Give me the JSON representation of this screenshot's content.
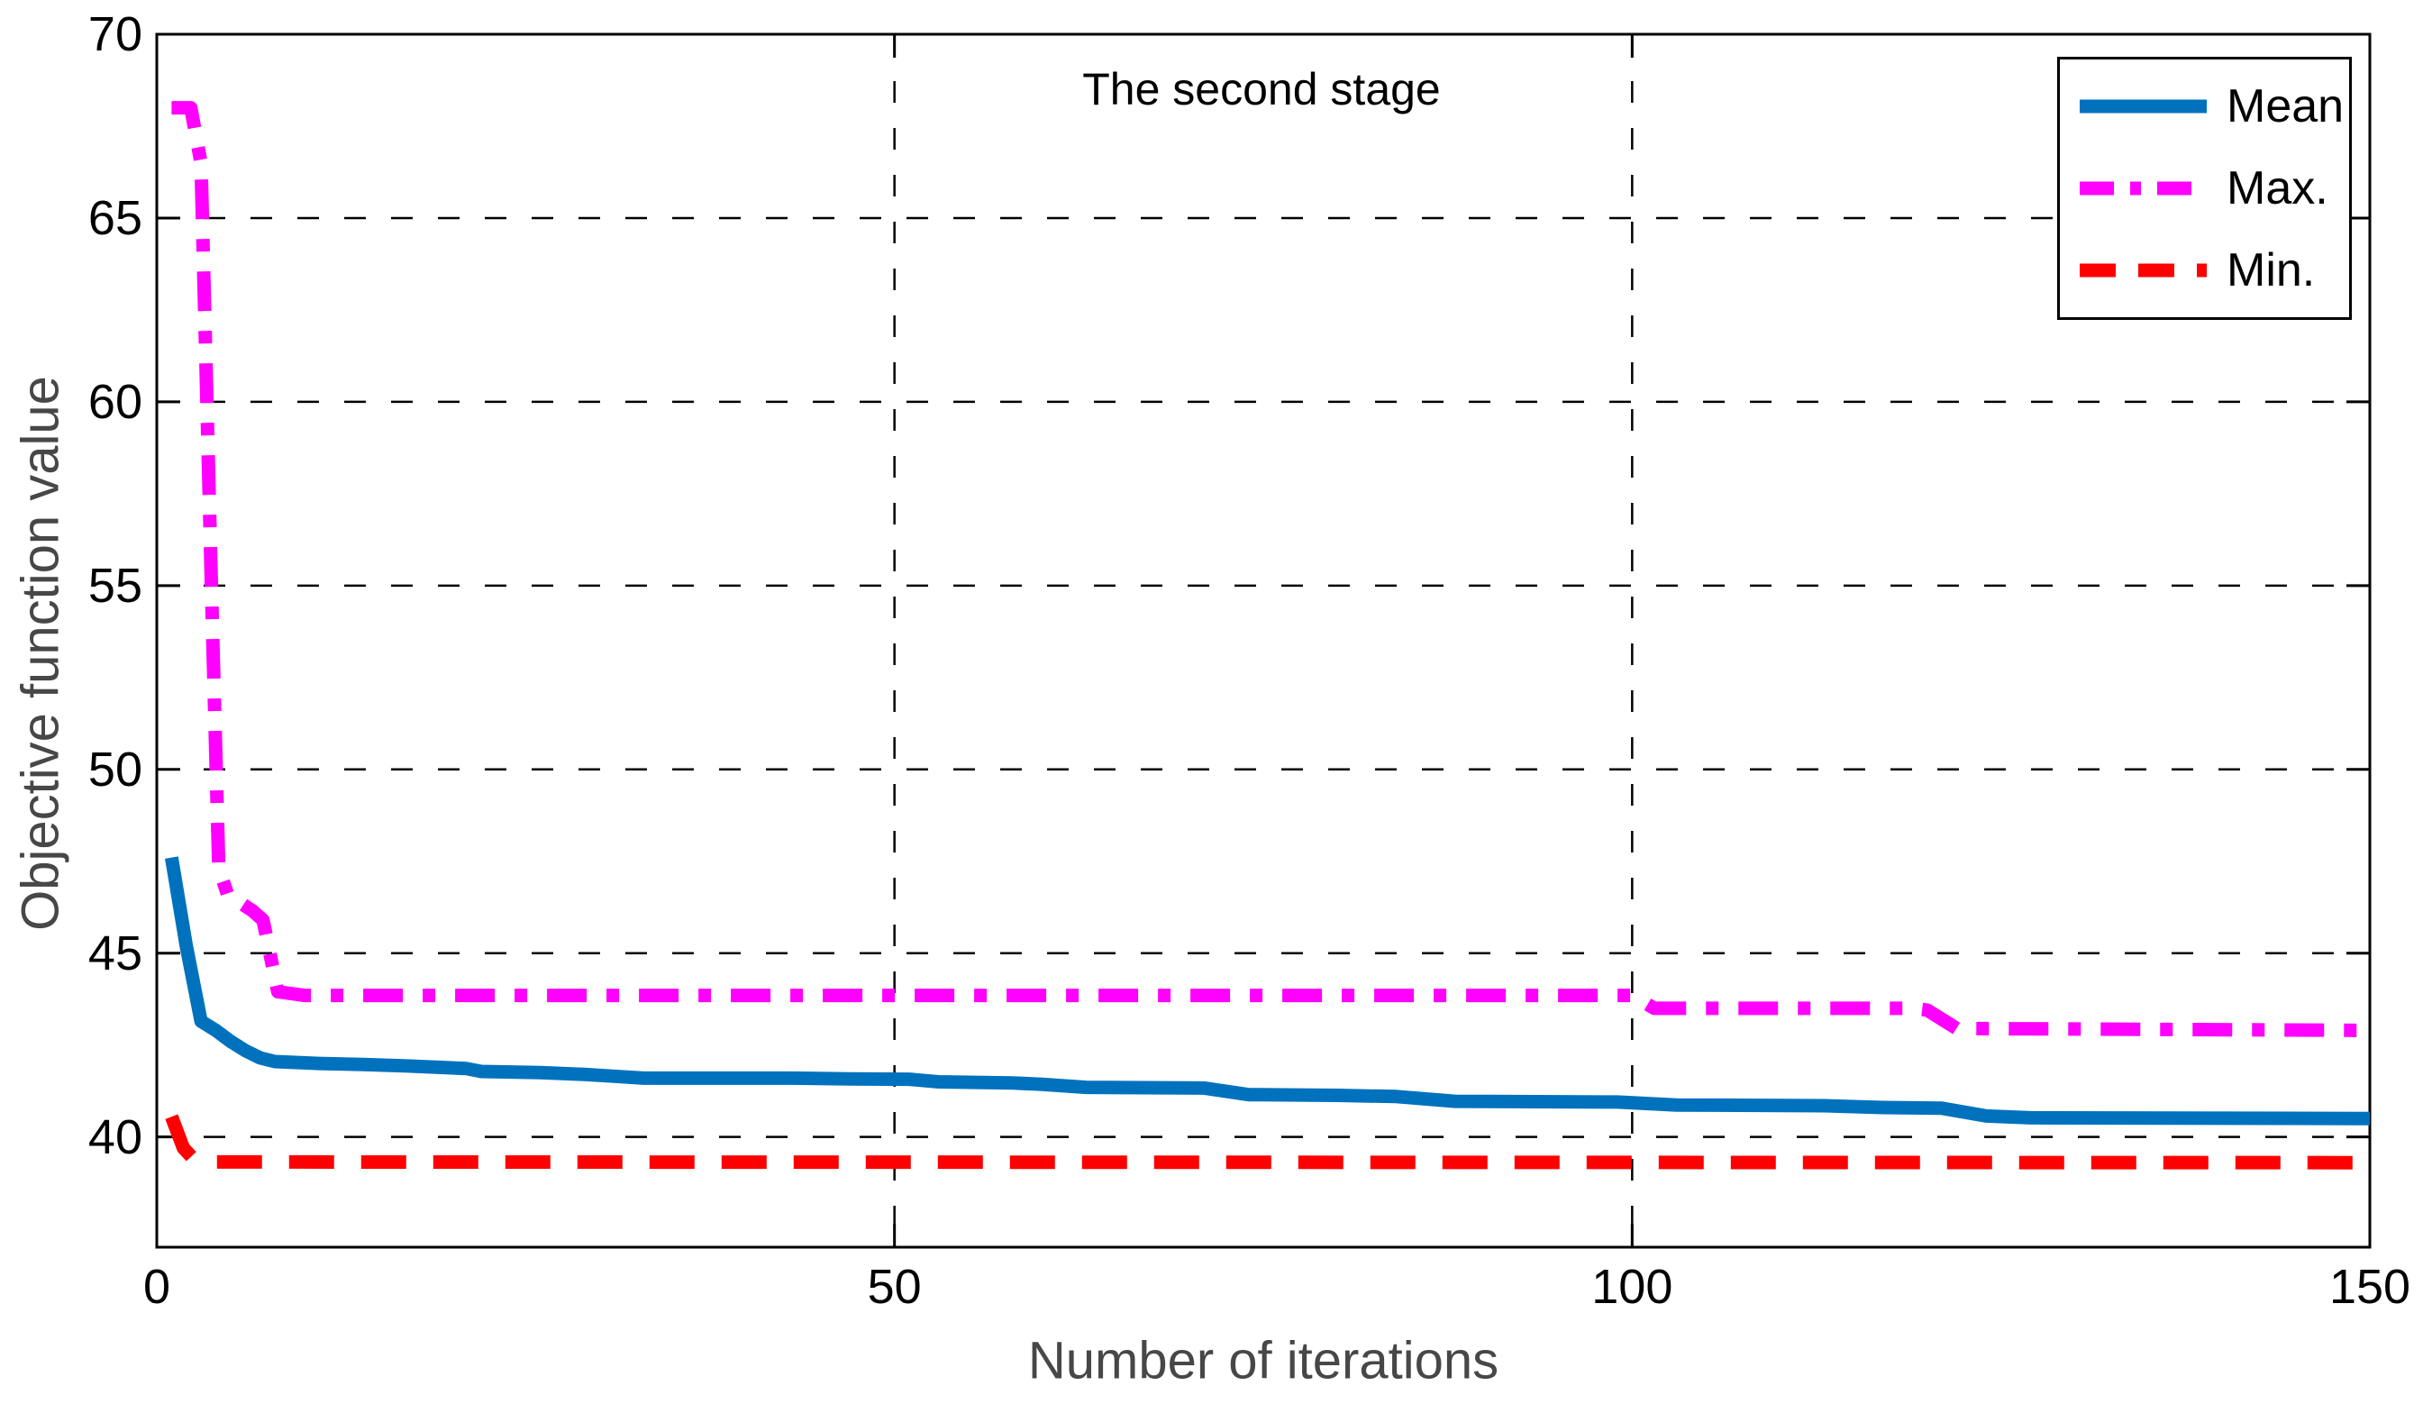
{
  "figure": {
    "background": "#FFFFFF"
  },
  "chart_data": {
    "type": "line",
    "title": "The second stage",
    "xlabel": "Number of iterations",
    "ylabel": "Objective function value",
    "xlim": [
      0,
      150
    ],
    "ylim": [
      37,
      70
    ],
    "x_ticks": [
      0,
      50,
      100,
      150
    ],
    "y_ticks": [
      40,
      45,
      50,
      55,
      60,
      65,
      70
    ],
    "grid": true,
    "grid_style": "dashed",
    "legend_position": "top-right",
    "axis_text_color": "#474747",
    "tick_text_color": "#000000",
    "series": [
      {
        "name": "Mean",
        "color": "#0072BD",
        "style": "solid",
        "points": [
          [
            1,
            47.6
          ],
          [
            2,
            45.2
          ],
          [
            3,
            43.15
          ],
          [
            4,
            42.9
          ],
          [
            5,
            42.6
          ],
          [
            6,
            42.35
          ],
          [
            7,
            42.15
          ],
          [
            8,
            42.05
          ],
          [
            11,
            42.0
          ],
          [
            14,
            41.97
          ],
          [
            17,
            41.93
          ],
          [
            20,
            41.88
          ],
          [
            21,
            41.86
          ],
          [
            22,
            41.78
          ],
          [
            26,
            41.75
          ],
          [
            29,
            41.7
          ],
          [
            31,
            41.65
          ],
          [
            33,
            41.6
          ],
          [
            43,
            41.6
          ],
          [
            47,
            41.58
          ],
          [
            51,
            41.57
          ],
          [
            53,
            41.5
          ],
          [
            58,
            41.47
          ],
          [
            60,
            41.43
          ],
          [
            63,
            41.35
          ],
          [
            71,
            41.33
          ],
          [
            74,
            41.15
          ],
          [
            80,
            41.13
          ],
          [
            84,
            41.1
          ],
          [
            88,
            40.97
          ],
          [
            99,
            40.95
          ],
          [
            103,
            40.87
          ],
          [
            113,
            40.85
          ],
          [
            117,
            40.8
          ],
          [
            121,
            40.78
          ],
          [
            124,
            40.57
          ],
          [
            127,
            40.52
          ],
          [
            150,
            40.5
          ]
        ]
      },
      {
        "name": "Max.",
        "color": "#FF00FF",
        "style": "dashdot",
        "points": [
          [
            1,
            68
          ],
          [
            2.3,
            68
          ],
          [
            3,
            66.5
          ],
          [
            3.7,
            55
          ],
          [
            4.2,
            47.3
          ],
          [
            4.8,
            46.6
          ],
          [
            6.5,
            46.15
          ],
          [
            7.2,
            45.9
          ],
          [
            8.2,
            43.95
          ],
          [
            10,
            43.85
          ],
          [
            100,
            43.85
          ],
          [
            101.5,
            43.5
          ],
          [
            119,
            43.5
          ],
          [
            120,
            43.45
          ],
          [
            122,
            42.95
          ],
          [
            150,
            42.9
          ]
        ]
      },
      {
        "name": "Min.",
        "color": "#FF0000",
        "style": "dashed",
        "points": [
          [
            1,
            40.55
          ],
          [
            1.8,
            39.7
          ],
          [
            2.5,
            39.4
          ],
          [
            3.5,
            39.32
          ],
          [
            150,
            39.3
          ]
        ]
      }
    ]
  }
}
